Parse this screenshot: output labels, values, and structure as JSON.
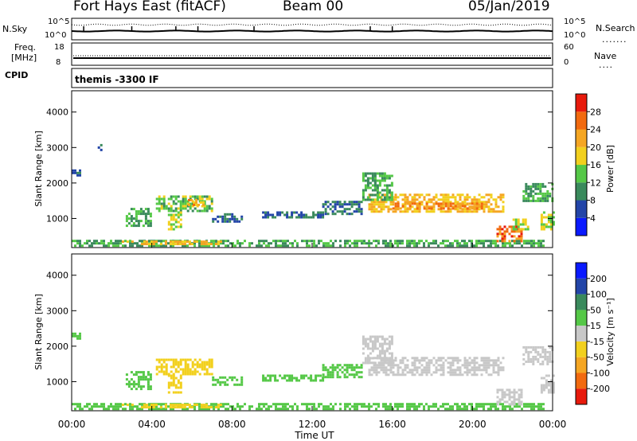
{
  "header": {
    "station": "Fort Hays East (fitACF)",
    "beam": "Beam 00",
    "date": "05/Jan/2019"
  },
  "side_labels": {
    "nsky": "N.Sky",
    "nsearch": "N.Search",
    "freq_line1": "Freq.",
    "freq_line2": "[MHz]",
    "nave": "Nave",
    "cpid": "CPID",
    "cpid_value": "themis -3300 IF"
  },
  "noise_panel": {
    "left_ticks": [
      "10^5",
      "10^0"
    ],
    "right_ticks": [
      "10^5",
      "10^0"
    ]
  },
  "freq_panel": {
    "left_ticks": [
      "18",
      "8"
    ],
    "right_ticks": [
      "60",
      "0"
    ]
  },
  "x_axis": {
    "label": "Time UT",
    "ticks": [
      "00:00",
      "04:00",
      "08:00",
      "12:00",
      "16:00",
      "20:00",
      "00:00"
    ]
  },
  "colors": {
    "power": [
      "#0a1aff",
      "#2345a8",
      "#3a8a5c",
      "#55c847",
      "#f2d01e",
      "#f5a623",
      "#f26a0f",
      "#e81a0c"
    ],
    "velocity": [
      "#e81a0c",
      "#f26a0f",
      "#f5a623",
      "#f2d01e",
      "#c8c8c8",
      "#55c847",
      "#3a8a5c",
      "#2345a8",
      "#0a1aff"
    ]
  },
  "power_colorbar": {
    "label": "Power [dB]",
    "ticks": [
      "28",
      "24",
      "20",
      "16",
      "12",
      "8",
      "4"
    ]
  },
  "velocity_colorbar": {
    "label": "Velocity [m s⁻¹]",
    "ticks": [
      "200",
      "100",
      "50",
      "15",
      "-15",
      "-50",
      "-100",
      "-200"
    ]
  },
  "chart_data": [
    {
      "type": "heatmap",
      "title": "Power",
      "xlabel": "Time UT",
      "ylabel": "Slant Range [km]",
      "x_range_hours": [
        0,
        24
      ],
      "ylim": [
        180,
        4600
      ],
      "yticks": [
        "1000",
        "2000",
        "3000",
        "4000"
      ],
      "zlabel": "Power [dB]",
      "zlim": [
        0,
        30
      ],
      "regions": [
        {
          "t0": 0.0,
          "t1": 23.5,
          "r0": 200,
          "r1": 400,
          "level": 12
        },
        {
          "t0": 2.5,
          "t1": 7.5,
          "r0": 250,
          "r1": 380,
          "level": 20
        },
        {
          "t0": 0.0,
          "t1": 0.4,
          "r0": 2200,
          "r1": 2450,
          "level": 8
        },
        {
          "t0": 1.3,
          "t1": 1.6,
          "r0": 2900,
          "r1": 3100,
          "level": 8
        },
        {
          "t0": 2.7,
          "t1": 4.0,
          "r0": 800,
          "r1": 1300,
          "level": 12
        },
        {
          "t0": 4.2,
          "t1": 7.0,
          "r0": 1200,
          "r1": 1650,
          "level": 14
        },
        {
          "t0": 5.8,
          "t1": 6.6,
          "r0": 1350,
          "r1": 1550,
          "level": 22
        },
        {
          "t0": 4.8,
          "t1": 5.5,
          "r0": 700,
          "r1": 1200,
          "level": 16
        },
        {
          "t0": 7.0,
          "t1": 8.5,
          "r0": 900,
          "r1": 1150,
          "level": 8
        },
        {
          "t0": 9.5,
          "t1": 12.5,
          "r0": 1000,
          "r1": 1200,
          "level": 8
        },
        {
          "t0": 12.5,
          "t1": 14.5,
          "r0": 1100,
          "r1": 1500,
          "level": 8
        },
        {
          "t0": 14.8,
          "t1": 21.5,
          "r0": 1200,
          "r1": 1700,
          "level": 20
        },
        {
          "t0": 16.0,
          "t1": 20.5,
          "r0": 1250,
          "r1": 1450,
          "level": 24
        },
        {
          "t0": 14.5,
          "t1": 16.0,
          "r0": 1500,
          "r1": 2300,
          "level": 12
        },
        {
          "t0": 21.2,
          "t1": 22.5,
          "r0": 350,
          "r1": 800,
          "level": 26
        },
        {
          "t0": 22.0,
          "t1": 22.8,
          "r0": 700,
          "r1": 1000,
          "level": 16
        },
        {
          "t0": 22.5,
          "t1": 24.0,
          "r0": 1500,
          "r1": 2000,
          "level": 12
        },
        {
          "t0": 23.4,
          "t1": 24.0,
          "r0": 700,
          "r1": 1200,
          "level": 16
        }
      ]
    },
    {
      "type": "heatmap",
      "title": "Velocity",
      "xlabel": "Time UT",
      "ylabel": "Slant Range [km]",
      "x_range_hours": [
        0,
        24
      ],
      "ylim": [
        180,
        4600
      ],
      "yticks": [
        "1000",
        "2000",
        "3000",
        "4000"
      ],
      "zlabel": "Velocity [m s⁻¹]",
      "zlim": [
        -250,
        250
      ],
      "regions": [
        {
          "t0": 0.0,
          "t1": 23.5,
          "r0": 200,
          "r1": 400,
          "level": 30
        },
        {
          "t0": 2.5,
          "t1": 7.5,
          "r0": 250,
          "r1": 380,
          "level": -30
        },
        {
          "t0": 0.0,
          "t1": 0.4,
          "r0": 2200,
          "r1": 2450,
          "level": 30
        },
        {
          "t0": 2.7,
          "t1": 4.0,
          "r0": 800,
          "r1": 1300,
          "level": 30
        },
        {
          "t0": 4.2,
          "t1": 7.0,
          "r0": 1200,
          "r1": 1650,
          "level": -40
        },
        {
          "t0": 4.8,
          "t1": 5.5,
          "r0": 700,
          "r1": 1200,
          "level": -40
        },
        {
          "t0": 7.0,
          "t1": 8.5,
          "r0": 900,
          "r1": 1150,
          "level": 30
        },
        {
          "t0": 9.5,
          "t1": 12.5,
          "r0": 1000,
          "r1": 1200,
          "level": 30
        },
        {
          "t0": 12.5,
          "t1": 14.5,
          "r0": 1100,
          "r1": 1500,
          "level": 30
        },
        {
          "t0": 14.8,
          "t1": 21.5,
          "r0": 1200,
          "r1": 1700,
          "level": 0
        },
        {
          "t0": 14.5,
          "t1": 16.0,
          "r0": 1500,
          "r1": 2300,
          "level": 0
        },
        {
          "t0": 21.2,
          "t1": 22.5,
          "r0": 350,
          "r1": 800,
          "level": 0
        },
        {
          "t0": 22.5,
          "t1": 24.0,
          "r0": 1500,
          "r1": 2000,
          "level": 0
        },
        {
          "t0": 23.4,
          "t1": 24.0,
          "r0": 700,
          "r1": 1200,
          "level": 0
        }
      ]
    }
  ]
}
